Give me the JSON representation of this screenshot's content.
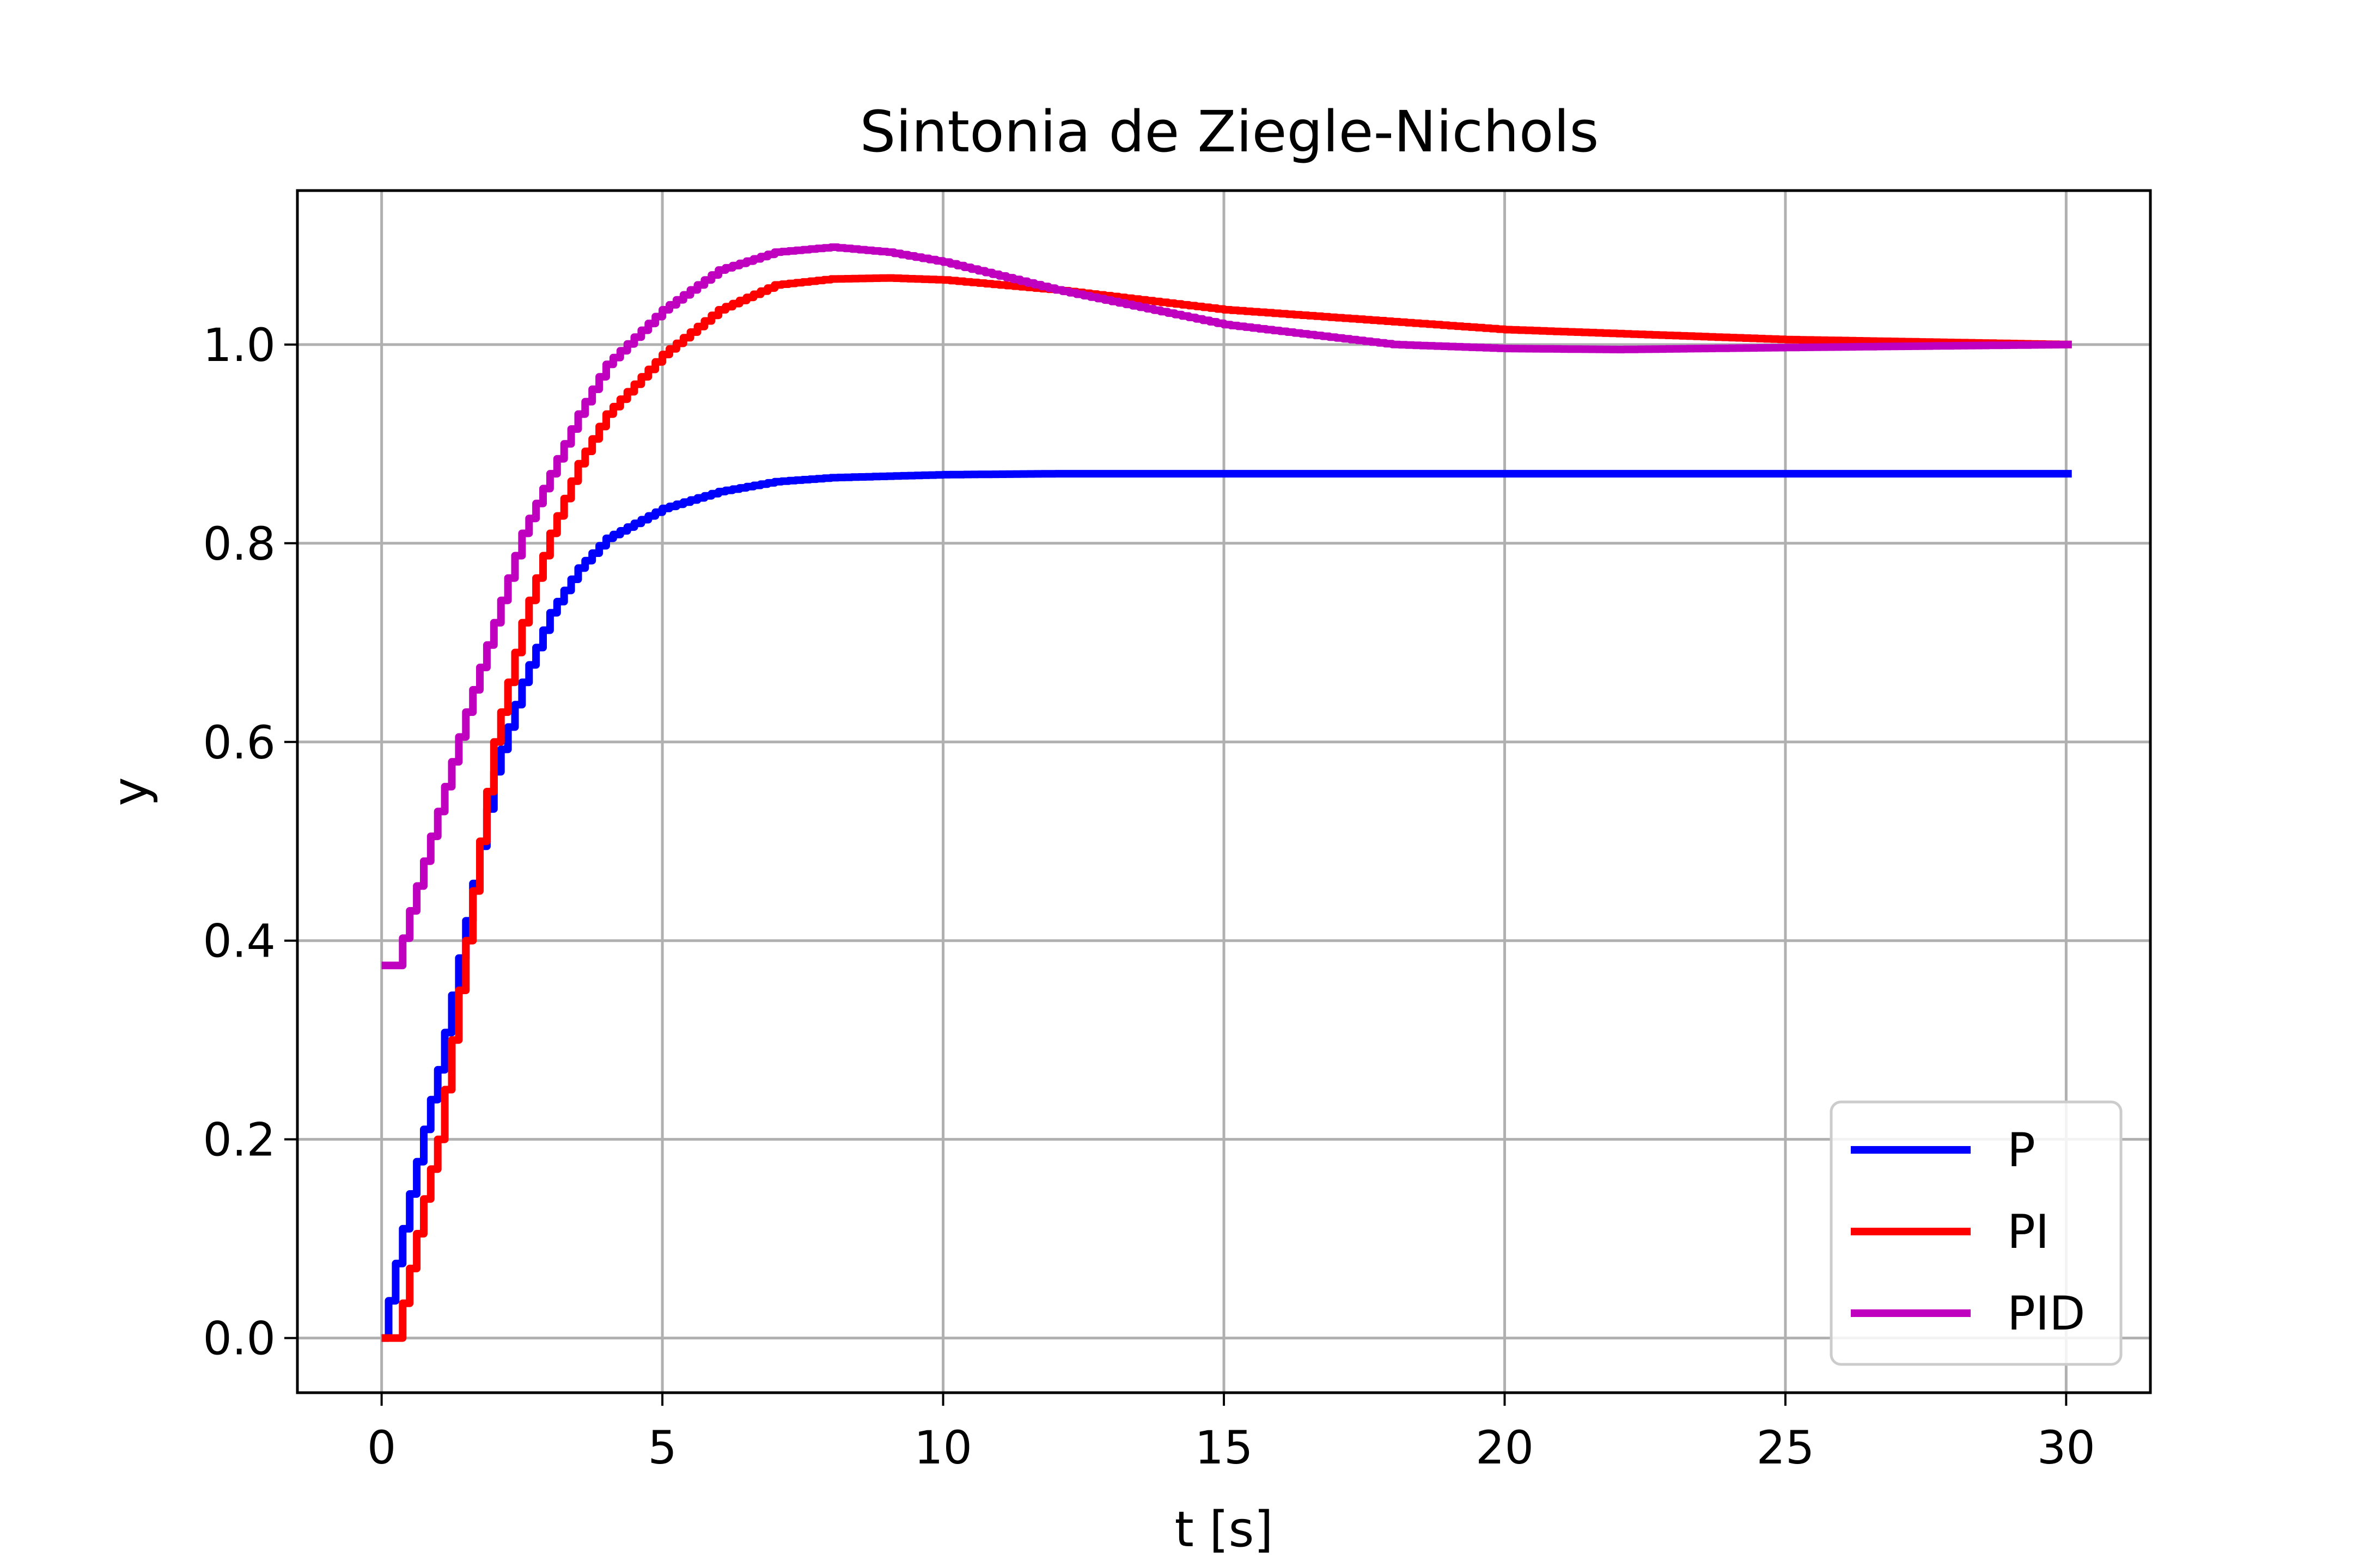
{
  "chart_data": {
    "type": "line",
    "title": "Sintonia de Ziegle-Nichols",
    "xlabel": "t [s]",
    "ylabel": "y",
    "xlim": [
      -1.5,
      31.5
    ],
    "ylim": [
      -0.055,
      1.155
    ],
    "xticks": [
      0,
      5,
      10,
      15,
      20,
      25,
      30
    ],
    "xtick_labels": [
      "0",
      "5",
      "10",
      "15",
      "20",
      "25",
      "30"
    ],
    "yticks": [
      0.0,
      0.2,
      0.4,
      0.6,
      0.8,
      1.0
    ],
    "ytick_labels": [
      "0.0",
      "0.2",
      "0.4",
      "0.6",
      "0.8",
      "1.0"
    ],
    "grid": true,
    "legend_position": "bottom-right",
    "step_style": "discrete steps",
    "series": [
      {
        "name": "P",
        "color": "#0000ff",
        "x": [
          0,
          0.25,
          0.5,
          0.75,
          1.0,
          1.5,
          2.0,
          2.5,
          3.0,
          3.5,
          4.0,
          5.0,
          6.0,
          7.0,
          8.0,
          10.0,
          12.0,
          15.0,
          20.0,
          25.0,
          30.0
        ],
        "y": [
          0.0,
          0.075,
          0.145,
          0.21,
          0.27,
          0.42,
          0.57,
          0.66,
          0.73,
          0.775,
          0.805,
          0.835,
          0.852,
          0.862,
          0.866,
          0.869,
          0.87,
          0.87,
          0.87,
          0.87,
          0.87
        ]
      },
      {
        "name": "PI",
        "color": "#ff0000",
        "x": [
          0,
          0.25,
          0.5,
          0.75,
          1.0,
          1.5,
          2.0,
          2.5,
          3.0,
          3.5,
          4.0,
          5.0,
          6.0,
          7.0,
          8.0,
          9.0,
          10.0,
          12.0,
          15.0,
          20.0,
          25.0,
          30.0
        ],
        "y": [
          0.0,
          0.0,
          0.07,
          0.14,
          0.2,
          0.4,
          0.6,
          0.72,
          0.81,
          0.88,
          0.93,
          0.99,
          1.035,
          1.06,
          1.066,
          1.067,
          1.065,
          1.055,
          1.035,
          1.015,
          1.005,
          1.0
        ]
      },
      {
        "name": "PID",
        "color": "#bf00bf",
        "x": [
          0,
          0.25,
          0.5,
          0.75,
          1.0,
          1.5,
          2.0,
          2.5,
          3.0,
          3.5,
          4.0,
          5.0,
          6.0,
          7.0,
          8.0,
          9.0,
          10.0,
          12.0,
          15.0,
          18.0,
          20.0,
          22.0,
          25.0,
          30.0
        ],
        "y": [
          0.375,
          0.375,
          0.43,
          0.48,
          0.53,
          0.63,
          0.72,
          0.81,
          0.87,
          0.93,
          0.98,
          1.035,
          1.075,
          1.093,
          1.098,
          1.093,
          1.083,
          1.055,
          1.02,
          1.0,
          0.996,
          0.995,
          0.997,
          1.0
        ]
      }
    ]
  }
}
